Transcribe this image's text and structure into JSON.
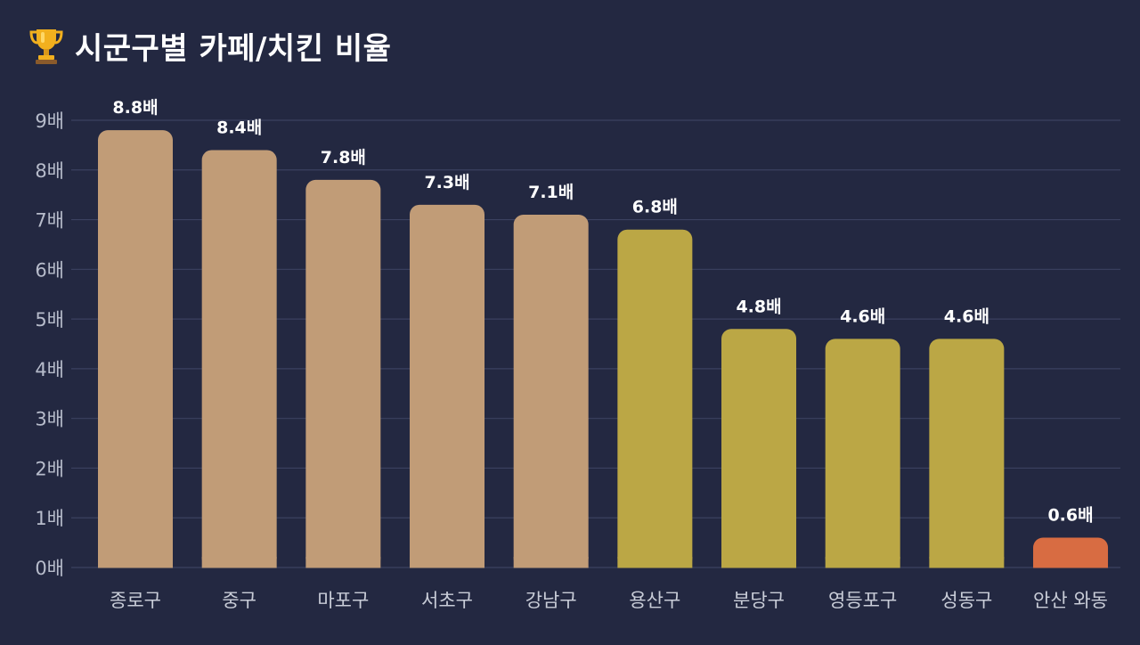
{
  "header": {
    "title": "시군구별 카페/치킨 비율",
    "icon": "trophy-icon"
  },
  "colors": {
    "background": "#232841",
    "grid": "#3b4160",
    "tan": "#c19c77",
    "gold": "#bba745",
    "orange": "#d86c42"
  },
  "chart_data": {
    "type": "bar",
    "title": "시군구별 카페/치킨 비율",
    "xlabel": "",
    "ylabel": "",
    "unit_suffix": "배",
    "ylim": [
      0,
      9
    ],
    "yticks": [
      0,
      1,
      2,
      3,
      4,
      5,
      6,
      7,
      8,
      9
    ],
    "ytick_labels": [
      "0배",
      "1배",
      "2배",
      "3배",
      "4배",
      "5배",
      "6배",
      "7배",
      "8배",
      "9배"
    ],
    "grid": true,
    "categories": [
      "종로구",
      "중구",
      "마포구",
      "서초구",
      "강남구",
      "용산구",
      "분당구",
      "영등포구",
      "성동구",
      "안산 와동"
    ],
    "values": [
      8.8,
      8.4,
      7.8,
      7.3,
      7.1,
      6.8,
      4.8,
      4.6,
      4.6,
      0.6
    ],
    "value_labels": [
      "8.8배",
      "8.4배",
      "7.8배",
      "7.3배",
      "7.1배",
      "6.8배",
      "4.8배",
      "4.6배",
      "4.6배",
      "0.6배"
    ],
    "bar_colors": [
      "#c19c77",
      "#c19c77",
      "#c19c77",
      "#c19c77",
      "#c19c77",
      "#bba745",
      "#bba745",
      "#bba745",
      "#bba745",
      "#d86c42"
    ]
  }
}
